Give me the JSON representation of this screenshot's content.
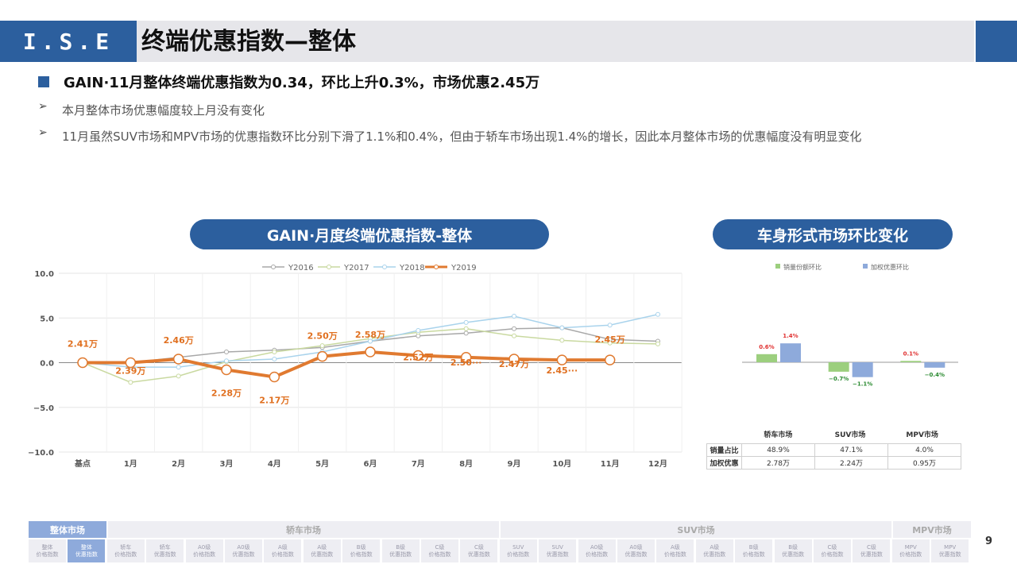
{
  "header": {
    "logo": "I.S.E",
    "title": "终端优惠指数—整体"
  },
  "headline": "GAIN·11月整体终端优惠指数为0.34，环比上升0.3%，市场优惠2.45万",
  "bullets": [
    "本月整体市场优惠幅度较上月没有变化",
    "11月虽然SUV市场和MPV市场的优惠指数环比分别下滑了1.1%和0.4%，但由于轿车市场出现1.4%的增长，因此本月整体市场的优惠幅度没有明显变化"
  ],
  "left_title": "GAIN·月度终端优惠指数-整体",
  "right_title": "车身形式市场环比变化",
  "chart_data": [
    {
      "type": "line",
      "title": "GAIN·月度终端优惠指数-整体",
      "categories": [
        "基点",
        "1月",
        "2月",
        "3月",
        "4月",
        "5月",
        "6月",
        "7月",
        "8月",
        "9月",
        "10月",
        "11月",
        "12月"
      ],
      "ylim": [
        -10,
        10
      ],
      "yticks": [
        "10.0",
        "5.0",
        "0.0",
        "−5.0",
        "−10.0"
      ],
      "series": [
        {
          "name": "Y2016",
          "color": "#a8a8a8",
          "values": [
            0,
            0,
            0.6,
            1.2,
            1.4,
            1.7,
            2.4,
            3.0,
            3.3,
            3.8,
            3.9,
            2.6,
            2.4
          ]
        },
        {
          "name": "Y2017",
          "color": "#c9d9a0",
          "values": [
            0,
            -2.2,
            -1.5,
            0.1,
            1.2,
            1.9,
            2.7,
            3.4,
            3.8,
            3.0,
            2.5,
            2.2,
            2.1
          ]
        },
        {
          "name": "Y2018",
          "color": "#a9d3ec",
          "values": [
            0,
            -0.5,
            -0.5,
            0.2,
            0.4,
            1.2,
            2.4,
            3.6,
            4.5,
            5.2,
            3.9,
            4.2,
            5.4
          ]
        },
        {
          "name": "Y2019",
          "color": "#e07a30",
          "values": [
            0,
            0,
            0.4,
            -0.8,
            -1.6,
            0.7,
            1.2,
            0.8,
            0.6,
            0.4,
            0.3,
            0.3,
            null
          ]
        }
      ],
      "data_labels": [
        "2.41万",
        "2.39万",
        "2.46万",
        "2.28万",
        "2.17万",
        "2.50万",
        "2.58万",
        "2.52万",
        "2.50···",
        "2.47万",
        "2.45···",
        "2.45万"
      ]
    },
    {
      "type": "bar",
      "title": "车身形式市场环比变化",
      "categories": [
        "轿车市场",
        "SUV市场",
        "MPV市场"
      ],
      "series": [
        {
          "name": "销量份额环比",
          "color": "#9ccf7e",
          "values": [
            0.6,
            -0.7,
            0.1
          ],
          "labels": [
            "0.6%",
            "−0.7%",
            "0.1%"
          ]
        },
        {
          "name": "加权优惠环比",
          "color": "#8eaadb",
          "values": [
            1.4,
            -1.1,
            -0.4
          ],
          "labels": [
            "1.4%",
            "−1.1%",
            "−0.4%"
          ]
        }
      ]
    }
  ],
  "right_table": {
    "rows": [
      {
        "label": "销量占比",
        "values": [
          "48.9%",
          "47.1%",
          "4.0%"
        ]
      },
      {
        "label": "加权优惠",
        "values": [
          "2.78万",
          "2.24万",
          "0.95万"
        ]
      }
    ]
  },
  "footer": {
    "groups": [
      "整体市场",
      "轿车市场",
      "SUV市场",
      "MPV市场"
    ],
    "cells": [
      "整体\n价格指数",
      "整体\n优惠指数",
      "轿车\n价格指数",
      "轿车\n优惠指数",
      "A0级\n价格指数",
      "A0级\n优惠指数",
      "A级\n价格指数",
      "A级\n优惠指数",
      "B级\n价格指数",
      "B级\n优惠指数",
      "C级\n价格指数",
      "C级\n优惠指数",
      "SUV\n价格指数",
      "SUV\n优惠指数",
      "A0级\n价格指数",
      "A0级\n优惠指数",
      "A级\n价格指数",
      "A级\n优惠指数",
      "B级\n价格指数",
      "B级\n优惠指数",
      "C级\n价格指数",
      "C级\n优惠指数",
      "MPV\n价格指数",
      "MPV\n优惠指数"
    ],
    "page": "9"
  },
  "colors": {
    "primary": "#2c5f9e",
    "accent": "#e07a30"
  }
}
